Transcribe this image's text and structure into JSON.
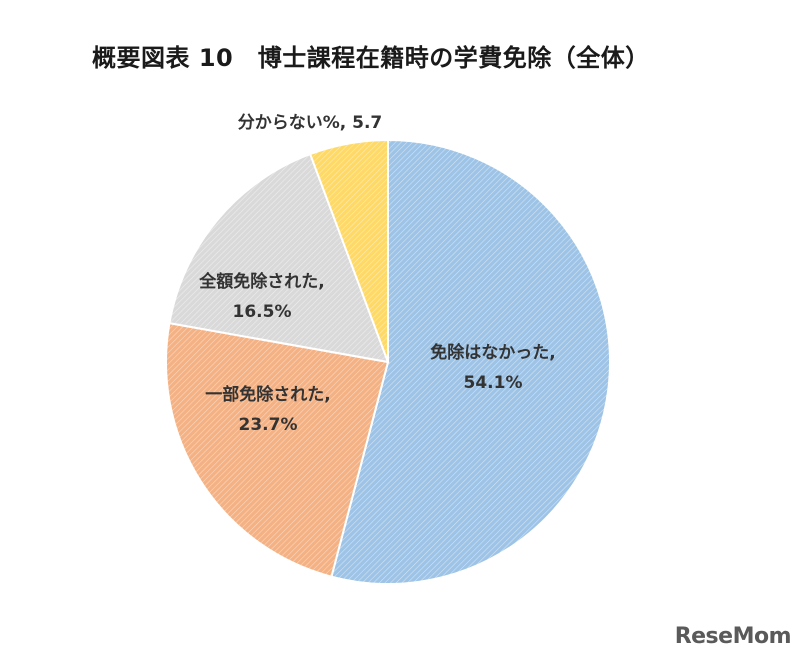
{
  "chart_data": {
    "type": "pie",
    "title": "概要図表 10　博士課程在籍時の学費免除（全体）",
    "slices": [
      {
        "label_line1": "免除はなかった,",
        "label_line2": "54.1%",
        "value": 54.1,
        "color": "#9dc3e6"
      },
      {
        "label_line1": "一部免除された,",
        "label_line2": "23.7%",
        "value": 23.7,
        "color": "#f4b183"
      },
      {
        "label_line1": "全額免除された,",
        "label_line2": "16.5%",
        "value": 16.5,
        "color": "#d9d9d9"
      },
      {
        "label_line1": "分からない%, 5.7",
        "label_line2": "",
        "value": 5.7,
        "color": "#ffd966"
      }
    ],
    "start_angle_deg": 0,
    "direction": "clockwise"
  },
  "watermark": "ReseMom"
}
